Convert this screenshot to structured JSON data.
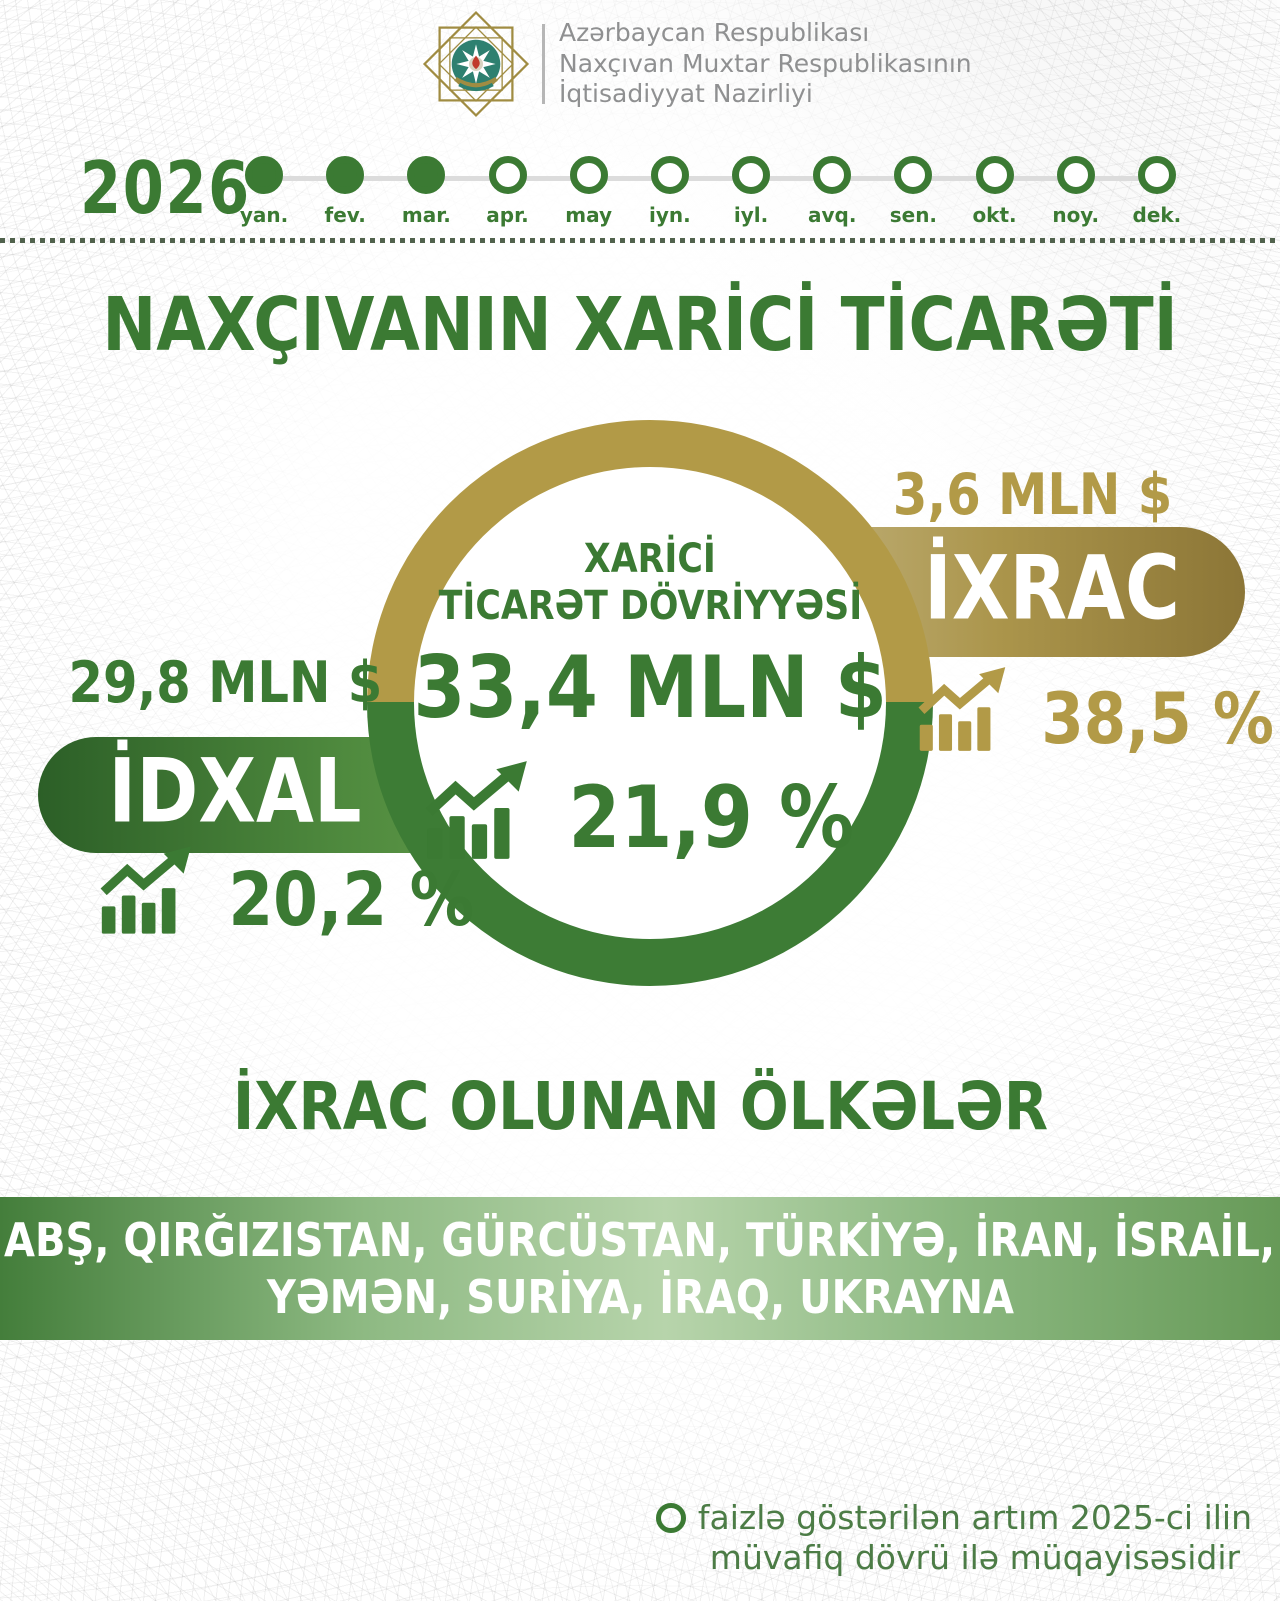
{
  "header": {
    "org_line1": "Azərbaycan Respublikası",
    "org_line2": "Naxçıvan Muxtar Respublikasının",
    "org_line3": "İqtisadiyyat Nazirliyi"
  },
  "timeline": {
    "year": "2026",
    "months": [
      {
        "label": "yan.",
        "filled": true
      },
      {
        "label": "fev.",
        "filled": true
      },
      {
        "label": "mar.",
        "filled": true
      },
      {
        "label": "apr.",
        "filled": false
      },
      {
        "label": "may",
        "filled": false
      },
      {
        "label": "iyn.",
        "filled": false
      },
      {
        "label": "iyl.",
        "filled": false
      },
      {
        "label": "avq.",
        "filled": false
      },
      {
        "label": "sen.",
        "filled": false
      },
      {
        "label": "okt.",
        "filled": false
      },
      {
        "label": "noy.",
        "filled": false
      },
      {
        "label": "dek.",
        "filled": false
      }
    ]
  },
  "title": "NAXÇIVANIN XARİCİ TİCARƏTİ",
  "center": {
    "label_line1": "XARİCİ",
    "label_line2": "TİCARƏT DÖVRİYYƏSİ",
    "value": "33,4 MLN $",
    "growth": "21,9 %"
  },
  "imports": {
    "value": "29,8 MLN $",
    "label": "İDXAL",
    "growth": "20,2 %"
  },
  "exports": {
    "value": "3,6 MLN $",
    "label": "İXRAC",
    "growth": "38,5 %"
  },
  "countries": {
    "title": "İXRAC OLUNAN ÖLKƏLƏR",
    "line1": "ABŞ, QIRĞIZISTAN, GÜRCÜSTAN, TÜRKİYƏ, İRAN, İSRAİL,",
    "line2": "YƏMƏN, SURİYA, İRAQ, UKRAYNA"
  },
  "footnote": {
    "line1": "faizlə göstərilən artım 2025-ci ilin",
    "line2": "müvafiq dövrü ilə müqayisəsidir"
  },
  "colors": {
    "green": "#3b7a33",
    "green_dark": "#2c5f27",
    "green_light": "#6aa14e",
    "gold": "#b29a47",
    "gold_light": "#c9bd90",
    "gold_dark": "#8c7637",
    "text_gray": "#8f9091"
  }
}
